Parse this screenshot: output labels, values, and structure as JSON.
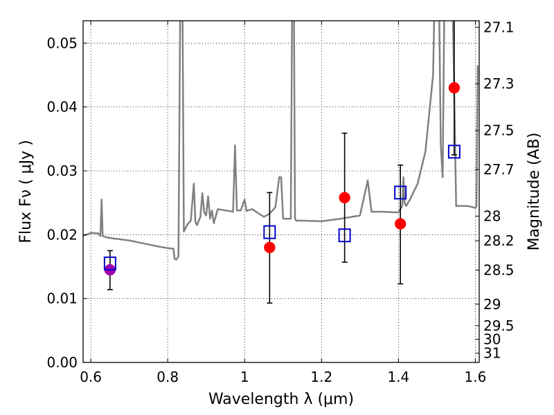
{
  "chart_data": {
    "type": "scatter",
    "xlabel": "Wavelength  λ (μm)",
    "ylabel": "Flux  Fν  ( μJy )",
    "y2label": "Magnitude (AB)",
    "xlim": [
      0.58,
      1.61
    ],
    "ylim": [
      0.0,
      0.0535
    ],
    "grid": true,
    "x_ticks": [
      0.6,
      0.8,
      1.0,
      1.2,
      1.4,
      1.6
    ],
    "x_tick_labels": [
      "0.6",
      "0.8",
      "1",
      "1.2",
      "1.4",
      "1.6"
    ],
    "y_ticks": [
      0.0,
      0.01,
      0.02,
      0.03,
      0.04,
      0.05
    ],
    "y_tick_labels": [
      "0.00",
      "0.01",
      "0.02",
      "0.03",
      "0.04",
      "0.05"
    ],
    "y2_ticks": [
      27.1,
      27.3,
      27.5,
      27.7,
      28,
      28.2,
      28.5,
      29,
      29.5,
      30,
      31
    ],
    "y2_tick_labels": [
      "27.1",
      "27.3",
      "27.5",
      "27.7",
      "28",
      "28.2",
      "28.5",
      "29",
      "29.5",
      "30",
      "31"
    ],
    "series": [
      {
        "kind": "line",
        "color": "#808080",
        "x": [
          0.58,
          0.6,
          0.62,
          0.625,
          0.628,
          0.631,
          0.64,
          0.66,
          0.7,
          0.74,
          0.78,
          0.8,
          0.815,
          0.818,
          0.822,
          0.828,
          0.833,
          0.835,
          0.838,
          0.842,
          0.845,
          0.85,
          0.86,
          0.868,
          0.872,
          0.876,
          0.885,
          0.89,
          0.895,
          0.9,
          0.905,
          0.91,
          0.915,
          0.92,
          0.93,
          0.95,
          0.97,
          0.975,
          0.98,
          0.99,
          1.0,
          1.005,
          1.008,
          1.02,
          1.05,
          1.065,
          1.08,
          1.09,
          1.095,
          1.1,
          1.11,
          1.12,
          1.124,
          1.126,
          1.128,
          1.131,
          1.134,
          1.15,
          1.2,
          1.25,
          1.3,
          1.32,
          1.33,
          1.36,
          1.39,
          1.4,
          1.41,
          1.413,
          1.416,
          1.42,
          1.43,
          1.45,
          1.47,
          1.49,
          1.495,
          1.5,
          1.505,
          1.51,
          1.515,
          1.52,
          1.525,
          1.53,
          1.535,
          1.54,
          1.55,
          1.58,
          1.6,
          1.603,
          1.606
        ],
        "y": [
          0.0198,
          0.0203,
          0.0202,
          0.0198,
          0.0255,
          0.0198,
          0.0196,
          0.0194,
          0.0191,
          0.0186,
          0.0181,
          0.0179,
          0.0178,
          0.0162,
          0.0161,
          0.0166,
          0.06,
          0.06,
          0.06,
          0.0205,
          0.0208,
          0.0215,
          0.0222,
          0.028,
          0.022,
          0.0215,
          0.0228,
          0.0265,
          0.0235,
          0.023,
          0.026,
          0.0225,
          0.0238,
          0.0218,
          0.024,
          0.0238,
          0.0236,
          0.034,
          0.0238,
          0.0238,
          0.0255,
          0.0237,
          0.0238,
          0.024,
          0.0228,
          0.0233,
          0.0243,
          0.029,
          0.029,
          0.0225,
          0.0225,
          0.0225,
          0.06,
          0.06,
          0.06,
          0.0225,
          0.0222,
          0.0222,
          0.0221,
          0.0225,
          0.023,
          0.0285,
          0.0236,
          0.0236,
          0.0235,
          0.0235,
          0.0245,
          0.029,
          0.025,
          0.0245,
          0.0255,
          0.028,
          0.033,
          0.045,
          0.06,
          0.06,
          0.06,
          0.034,
          0.029,
          0.06,
          0.06,
          0.06,
          0.06,
          0.06,
          0.0245,
          0.0245,
          0.0242,
          0.0245,
          0.0465
        ]
      },
      {
        "kind": "points",
        "marker": "circle",
        "color": "#ff0000",
        "x": [
          1.065,
          1.26,
          1.405,
          1.545
        ],
        "y": [
          0.018,
          0.0258,
          0.0217,
          0.043
        ]
      },
      {
        "kind": "points",
        "marker": "circle",
        "color": "#a000b0",
        "x": [
          0.65
        ],
        "y": [
          0.0145
        ]
      },
      {
        "kind": "points",
        "marker": "square",
        "color": "#0000cc",
        "x": [
          0.65,
          1.065,
          1.26,
          1.405,
          1.545
        ],
        "y": [
          0.0155,
          0.0204,
          0.0199,
          0.0266,
          0.033
        ]
      },
      {
        "kind": "errorbars",
        "color": "#000000",
        "x": [
          0.65,
          1.065,
          1.26,
          1.405,
          1.545
        ],
        "ylo": [
          0.0114,
          0.0093,
          0.0157,
          0.0123,
          0.0325
        ],
        "yhi": [
          0.0175,
          0.0266,
          0.0359,
          0.0309,
          0.06
        ]
      }
    ]
  }
}
